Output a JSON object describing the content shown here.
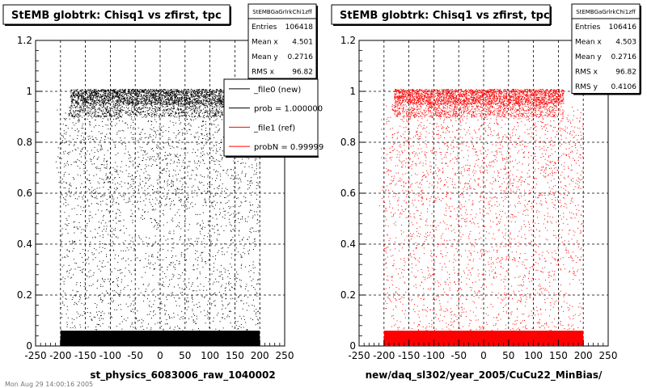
{
  "footer_text": "Mon Aug 29 14:00:16 2005",
  "chart_data": [
    {
      "type": "scatter",
      "title": "StEMB globtrk: Chisq1 vs zfirst, tpc",
      "xlabel": "st_physics_6083006_raw_1040002",
      "ylabel": "",
      "xlim": [
        -250,
        250
      ],
      "ylim": [
        0,
        1.2
      ],
      "xticks": [
        "-250",
        "-200",
        "-150",
        "-100",
        "-50",
        "0",
        "50",
        "100",
        "150",
        "200",
        "250"
      ],
      "yticks": [
        "0",
        "0.2",
        "0.4",
        "0.6",
        "0.8",
        "1",
        "1.2"
      ],
      "grid": true,
      "point_color": "#000000",
      "density_description": {
        "x_range": [
          -200,
          200
        ],
        "bands": [
          {
            "y": [
              0,
              0.06
            ],
            "level": "saturated"
          },
          {
            "y": [
              0.92,
              1.01
            ],
            "level": "dense"
          },
          {
            "y": [
              0.06,
              0.92
            ],
            "level": "sparse"
          }
        ]
      },
      "stats": {
        "header": "StEMBGaGrlrkChi1zff",
        "rows": [
          {
            "label": "Entries",
            "value": "106418"
          },
          {
            "label": "Mean x",
            "value": "4.501"
          },
          {
            "label": "Mean y",
            "value": "0.2716"
          },
          {
            "label": "RMS x",
            "value": "96.82"
          }
        ]
      },
      "legend": {
        "position": "top-right",
        "entries": [
          {
            "label": "_file0 (new)",
            "color": "#000000"
          },
          {
            "label": "prob = 1.000000",
            "color": "#000000"
          },
          {
            "label": "_file1 (ref)",
            "color": "#ff0000"
          },
          {
            "label": "probN = 0.99999",
            "color": "#ff0000"
          }
        ]
      }
    },
    {
      "type": "scatter",
      "title": "StEMB globtrk: Chisq1 vs zfirst, tpc",
      "xlabel": "new/daq_sl302/year_2005/CuCu22_MinBias/",
      "ylabel": "",
      "xlim": [
        -250,
        250
      ],
      "ylim": [
        0,
        1.2
      ],
      "xticks": [
        "-250",
        "-200",
        "-150",
        "-100",
        "-50",
        "0",
        "50",
        "100",
        "150",
        "200",
        "250"
      ],
      "yticks": [
        "0",
        "0.2",
        "0.4",
        "0.6",
        "0.8",
        "1",
        "1.2"
      ],
      "grid": true,
      "point_color": "#ff0000",
      "density_description": {
        "x_range": [
          -200,
          200
        ],
        "bands": [
          {
            "y": [
              0,
              0.06
            ],
            "level": "saturated"
          },
          {
            "y": [
              0.92,
              1.01
            ],
            "level": "dense"
          },
          {
            "y": [
              0.06,
              0.92
            ],
            "level": "sparse"
          }
        ]
      },
      "stats": {
        "header": "StEMBGaGrlrkChi1zff",
        "rows": [
          {
            "label": "Entries",
            "value": "106416"
          },
          {
            "label": "Mean x",
            "value": "4.503"
          },
          {
            "label": "Mean y",
            "value": "0.2716"
          },
          {
            "label": "RMS x",
            "value": "96.82"
          },
          {
            "label": "RMS y",
            "value": "0.4106"
          }
        ]
      },
      "legend": null
    }
  ]
}
